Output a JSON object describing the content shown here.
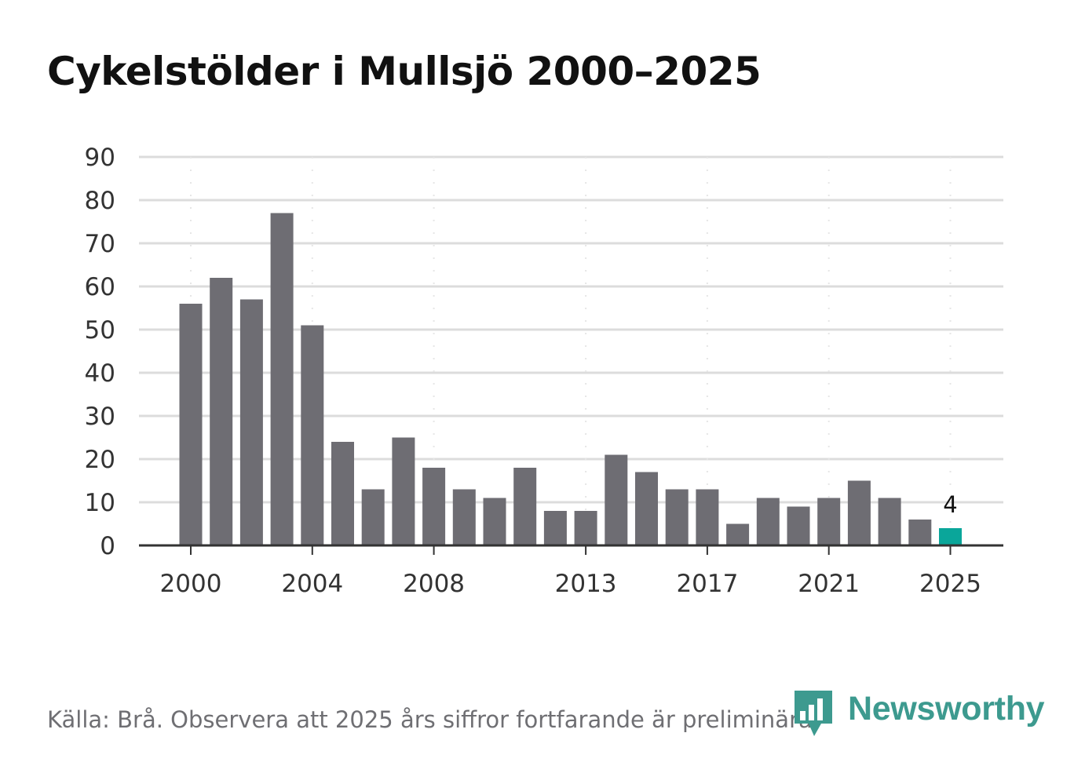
{
  "title": "Cykelstölder i Mullsjö 2000–2025",
  "source": "Källa: Brå. Observera att 2025 års siffror fortfarande är preliminära.",
  "brand": {
    "name": "Newsworthy",
    "icon": "newsworthy-logo-icon",
    "color": "#3d9a8f"
  },
  "colors": {
    "bar": "#6e6d73",
    "highlight": "#0aa69a",
    "grid": "#dcdcdc",
    "axis": "#333333"
  },
  "chart_data": {
    "type": "bar",
    "title": "Cykelstölder i Mullsjö 2000–2025",
    "xlabel": "",
    "ylabel": "",
    "categories": [
      "2000",
      "2001",
      "2002",
      "2003",
      "2004",
      "2005",
      "2006",
      "2007",
      "2008",
      "2009",
      "2010",
      "2011",
      "2012",
      "2013",
      "2014",
      "2015",
      "2016",
      "2017",
      "2018",
      "2019",
      "2020",
      "2021",
      "2022",
      "2023",
      "2024",
      "2025"
    ],
    "values": [
      56,
      62,
      57,
      77,
      51,
      24,
      13,
      25,
      18,
      13,
      11,
      18,
      8,
      8,
      21,
      17,
      13,
      13,
      5,
      11,
      9,
      11,
      15,
      11,
      6,
      4
    ],
    "highlight": "2025",
    "highlight_label": "4",
    "ylim": [
      0,
      90
    ],
    "yticks": [
      0,
      10,
      20,
      30,
      40,
      50,
      60,
      70,
      80,
      90
    ],
    "xticks": [
      "2000",
      "2004",
      "2008",
      "2013",
      "2017",
      "2021",
      "2025"
    ],
    "grid": true
  }
}
